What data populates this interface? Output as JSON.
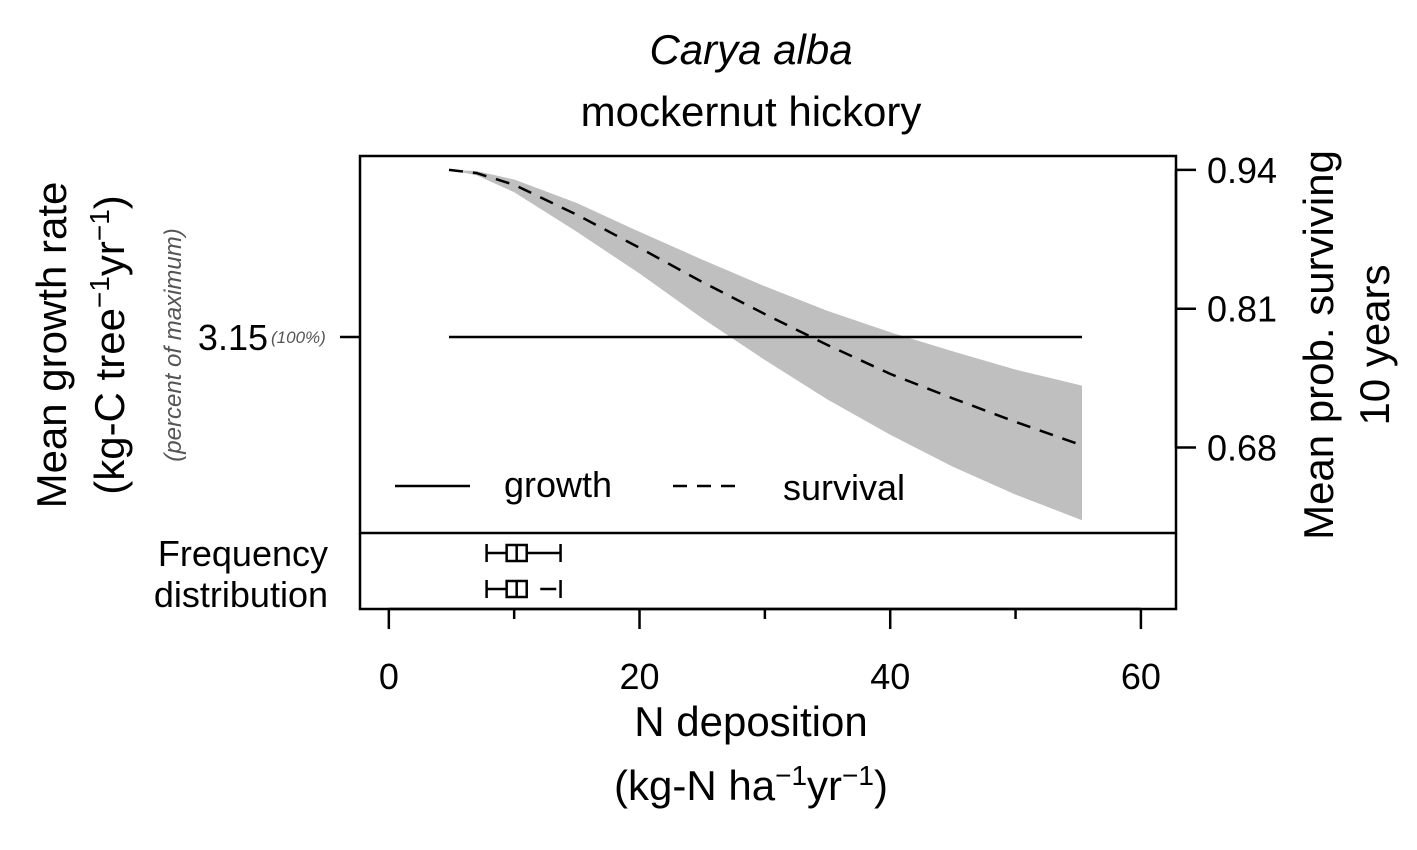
{
  "chart_data": {
    "type": "line",
    "title": "Carya alba",
    "subtitle": "mockernut hickory",
    "xlabel": {
      "line1": "N deposition",
      "line2_parts": [
        "(kg-N ha",
        "−1",
        "yr",
        "−1",
        ")"
      ]
    },
    "ylabel_left": {
      "line1": "Mean growth rate",
      "line2_parts": [
        "(kg-C tree",
        "−1",
        "yr",
        "−1",
        ")"
      ],
      "line3": "(percent of maximum)"
    },
    "ylabel_right": {
      "line1": "Mean prob. surviving",
      "line2": "10 years"
    },
    "xlim": [
      -2.3,
      62.8
    ],
    "x_ticks": [
      0,
      20,
      40,
      60
    ],
    "x_minor_ticks": [
      10,
      30,
      50
    ],
    "x_tick_labels": [
      "0",
      "20",
      "40",
      "60"
    ],
    "survival_ylim": [
      0.6,
      0.953
    ],
    "survival_ticks": [
      0.94,
      0.81,
      0.68
    ],
    "survival_tick_labels": [
      "0.94",
      "0.81",
      "0.68"
    ],
    "growth_tick_label": "3.15",
    "growth_tick_pct": "(100%)",
    "growth_level_fraction": 0.52,
    "series": [
      {
        "name": "growth",
        "style": "solid",
        "x": [
          4.8,
          55.3
        ],
        "y": [
          3.15,
          3.15
        ]
      },
      {
        "name": "survival",
        "style": "dashed",
        "x": [
          4.8,
          7,
          10,
          15,
          20,
          25,
          30,
          35,
          40,
          45,
          50,
          55.3
        ],
        "y": [
          0.94,
          0.937,
          0.926,
          0.898,
          0.867,
          0.835,
          0.805,
          0.776,
          0.749,
          0.726,
          0.704,
          0.682
        ],
        "band_lower": [
          0.94,
          0.935,
          0.919,
          0.882,
          0.843,
          0.801,
          0.762,
          0.725,
          0.692,
          0.662,
          0.636,
          0.612
        ],
        "band_upper": [
          0.94,
          0.939,
          0.931,
          0.909,
          0.882,
          0.856,
          0.831,
          0.808,
          0.788,
          0.77,
          0.753,
          0.738
        ]
      }
    ],
    "legend": {
      "position": "bottom-left",
      "items": [
        "growth",
        "survival"
      ]
    },
    "distribution": {
      "label_line1": "Frequency",
      "label_line2": "distribution",
      "boxes": [
        {
          "whisker_low": 7.8,
          "q1": 9.4,
          "median": 10.2,
          "q3": 11.0,
          "whisker_high": 13.7,
          "whisker_high_style": "capped"
        },
        {
          "whisker_low": 7.8,
          "q1": 9.4,
          "median": 10.2,
          "q3": 11.0,
          "whisker_high": 13.7,
          "whisker_high_style": "dashed-gap"
        }
      ]
    },
    "colors": {
      "band": "#bfbfbf",
      "line": "#000000",
      "muted_text": "#555555"
    },
    "grid": false
  }
}
